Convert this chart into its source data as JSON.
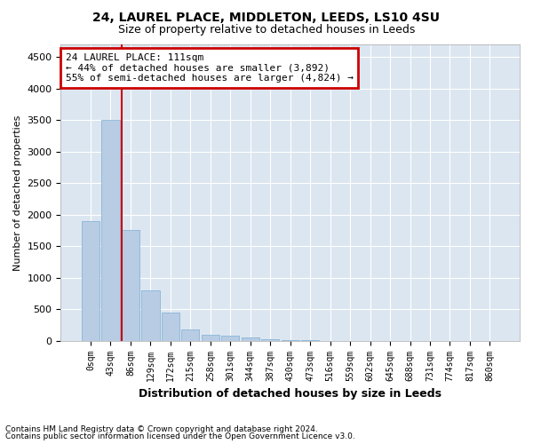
{
  "title1": "24, LAUREL PLACE, MIDDLETON, LEEDS, LS10 4SU",
  "title2": "Size of property relative to detached houses in Leeds",
  "xlabel": "Distribution of detached houses by size in Leeds",
  "ylabel": "Number of detached properties",
  "bar_color": "#b8cce4",
  "bar_edge_color": "#7bafd4",
  "background_color": "#dce6f1",
  "grid_color": "#ffffff",
  "annotation_box_color": "#cc0000",
  "annotation_line_color": "#cc0000",
  "annotation_text": "24 LAUREL PLACE: 111sqm\n← 44% of detached houses are smaller (3,892)\n55% of semi-detached houses are larger (4,824) →",
  "footnote1": "Contains HM Land Registry data © Crown copyright and database right 2024.",
  "footnote2": "Contains public sector information licensed under the Open Government Licence v3.0.",
  "bin_labels": [
    "0sqm",
    "43sqm",
    "86sqm",
    "129sqm",
    "172sqm",
    "215sqm",
    "258sqm",
    "301sqm",
    "344sqm",
    "387sqm",
    "430sqm",
    "473sqm",
    "516sqm",
    "559sqm",
    "602sqm",
    "645sqm",
    "688sqm",
    "731sqm",
    "774sqm",
    "817sqm",
    "860sqm"
  ],
  "bar_heights": [
    1900,
    3500,
    1750,
    800,
    450,
    175,
    100,
    75,
    50,
    30,
    10,
    5,
    2,
    1,
    1,
    0,
    0,
    0,
    0,
    0,
    0
  ],
  "red_line_x": 1.575,
  "ylim": [
    0,
    4700
  ],
  "yticks": [
    0,
    500,
    1000,
    1500,
    2000,
    2500,
    3000,
    3500,
    4000,
    4500
  ]
}
